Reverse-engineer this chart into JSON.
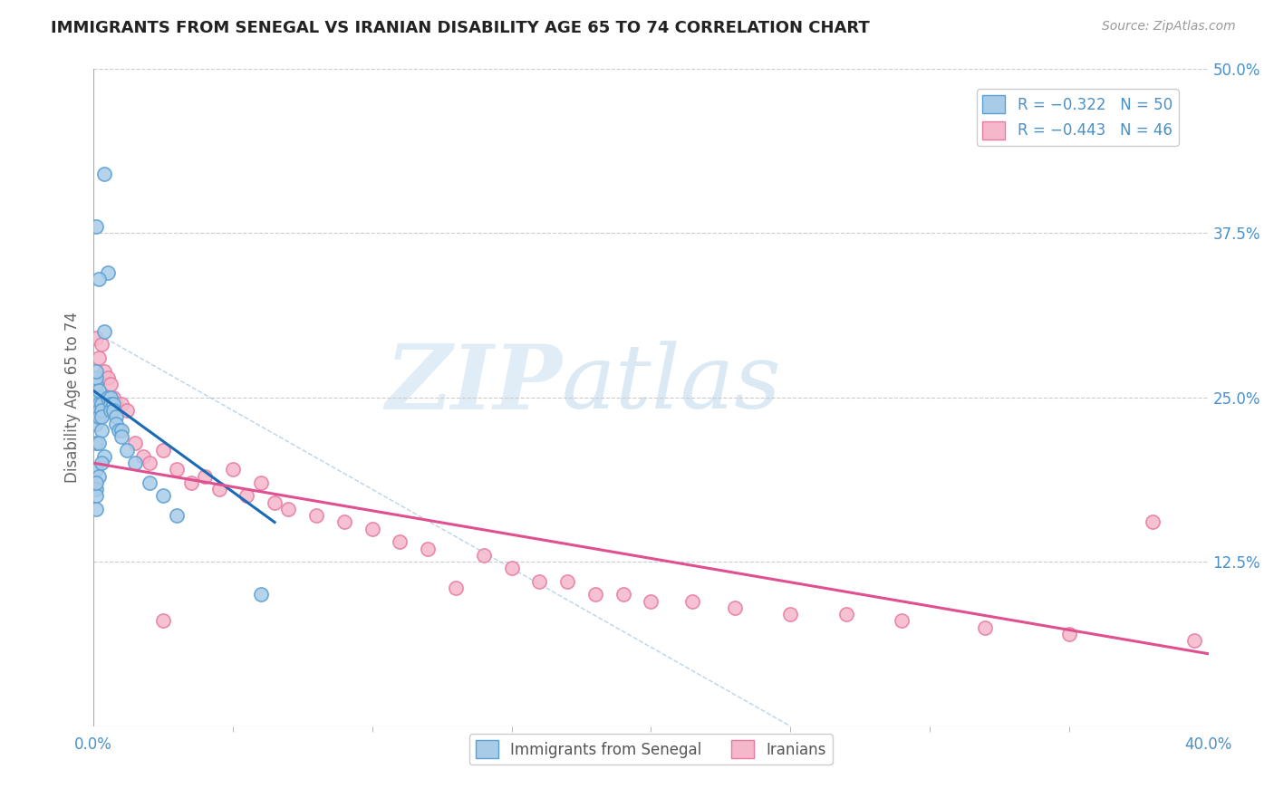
{
  "title": "IMMIGRANTS FROM SENEGAL VS IRANIAN DISABILITY AGE 65 TO 74 CORRELATION CHART",
  "source": "Source: ZipAtlas.com",
  "ylabel": "Disability Age 65 to 74",
  "xlim": [
    0.0,
    0.4
  ],
  "ylim": [
    0.0,
    0.5
  ],
  "ytick_labels": [
    "12.5%",
    "25.0%",
    "37.5%",
    "50.0%"
  ],
  "ytick_values": [
    0.125,
    0.25,
    0.375,
    0.5
  ],
  "legend_r1": "R = −0.322",
  "legend_n1": "N = 50",
  "legend_r2": "R = −0.443",
  "legend_n2": "N = 46",
  "color_blue_fill": "#a8cce8",
  "color_blue_edge": "#5a9fd4",
  "color_blue_line": "#1a6bb5",
  "color_pink_fill": "#f5b8cb",
  "color_pink_edge": "#e87aa0",
  "color_pink_line": "#e05090",
  "color_text_blue": "#4a90c8",
  "color_grid": "#cccccc",
  "watermark_zip": "ZIP",
  "watermark_atlas": "atlas",
  "blue_x": [
    0.001,
    0.001,
    0.001,
    0.001,
    0.001,
    0.001,
    0.001,
    0.001,
    0.002,
    0.002,
    0.002,
    0.002,
    0.002,
    0.003,
    0.003,
    0.003,
    0.004,
    0.004,
    0.005,
    0.005,
    0.006,
    0.006,
    0.006,
    0.007,
    0.007,
    0.008,
    0.008,
    0.009,
    0.01,
    0.01,
    0.012,
    0.015,
    0.02,
    0.025,
    0.03,
    0.001,
    0.001,
    0.002,
    0.003,
    0.004,
    0.001,
    0.001,
    0.002,
    0.001,
    0.001,
    0.003,
    0.001,
    0.002,
    0.06,
    0.001
  ],
  "blue_y": [
    0.255,
    0.25,
    0.245,
    0.24,
    0.235,
    0.23,
    0.26,
    0.265,
    0.25,
    0.245,
    0.24,
    0.235,
    0.255,
    0.245,
    0.24,
    0.235,
    0.3,
    0.42,
    0.345,
    0.25,
    0.25,
    0.245,
    0.24,
    0.245,
    0.24,
    0.235,
    0.23,
    0.225,
    0.225,
    0.22,
    0.21,
    0.2,
    0.185,
    0.175,
    0.16,
    0.38,
    0.27,
    0.34,
    0.225,
    0.205,
    0.215,
    0.195,
    0.19,
    0.18,
    0.175,
    0.2,
    0.185,
    0.215,
    0.1,
    0.165
  ],
  "pink_x": [
    0.001,
    0.002,
    0.003,
    0.004,
    0.005,
    0.006,
    0.007,
    0.008,
    0.01,
    0.012,
    0.015,
    0.018,
    0.02,
    0.025,
    0.03,
    0.035,
    0.04,
    0.045,
    0.05,
    0.055,
    0.06,
    0.065,
    0.07,
    0.08,
    0.09,
    0.1,
    0.11,
    0.12,
    0.13,
    0.14,
    0.15,
    0.16,
    0.17,
    0.18,
    0.19,
    0.2,
    0.215,
    0.23,
    0.25,
    0.27,
    0.29,
    0.32,
    0.35,
    0.38,
    0.395,
    0.025
  ],
  "pink_y": [
    0.295,
    0.28,
    0.29,
    0.27,
    0.265,
    0.26,
    0.25,
    0.245,
    0.245,
    0.24,
    0.215,
    0.205,
    0.2,
    0.21,
    0.195,
    0.185,
    0.19,
    0.18,
    0.195,
    0.175,
    0.185,
    0.17,
    0.165,
    0.16,
    0.155,
    0.15,
    0.14,
    0.135,
    0.105,
    0.13,
    0.12,
    0.11,
    0.11,
    0.1,
    0.1,
    0.095,
    0.095,
    0.09,
    0.085,
    0.085,
    0.08,
    0.075,
    0.07,
    0.155,
    0.065,
    0.08
  ],
  "blue_line_x0": 0.0,
  "blue_line_x1": 0.065,
  "blue_line_y0": 0.255,
  "blue_line_y1": 0.155,
  "pink_line_x0": 0.0,
  "pink_line_x1": 0.4,
  "pink_line_y0": 0.2,
  "pink_line_y1": 0.055,
  "ref_line_x0": 0.0,
  "ref_line_y0": 0.3,
  "ref_line_x1": 0.25,
  "ref_line_y1": 0.0
}
